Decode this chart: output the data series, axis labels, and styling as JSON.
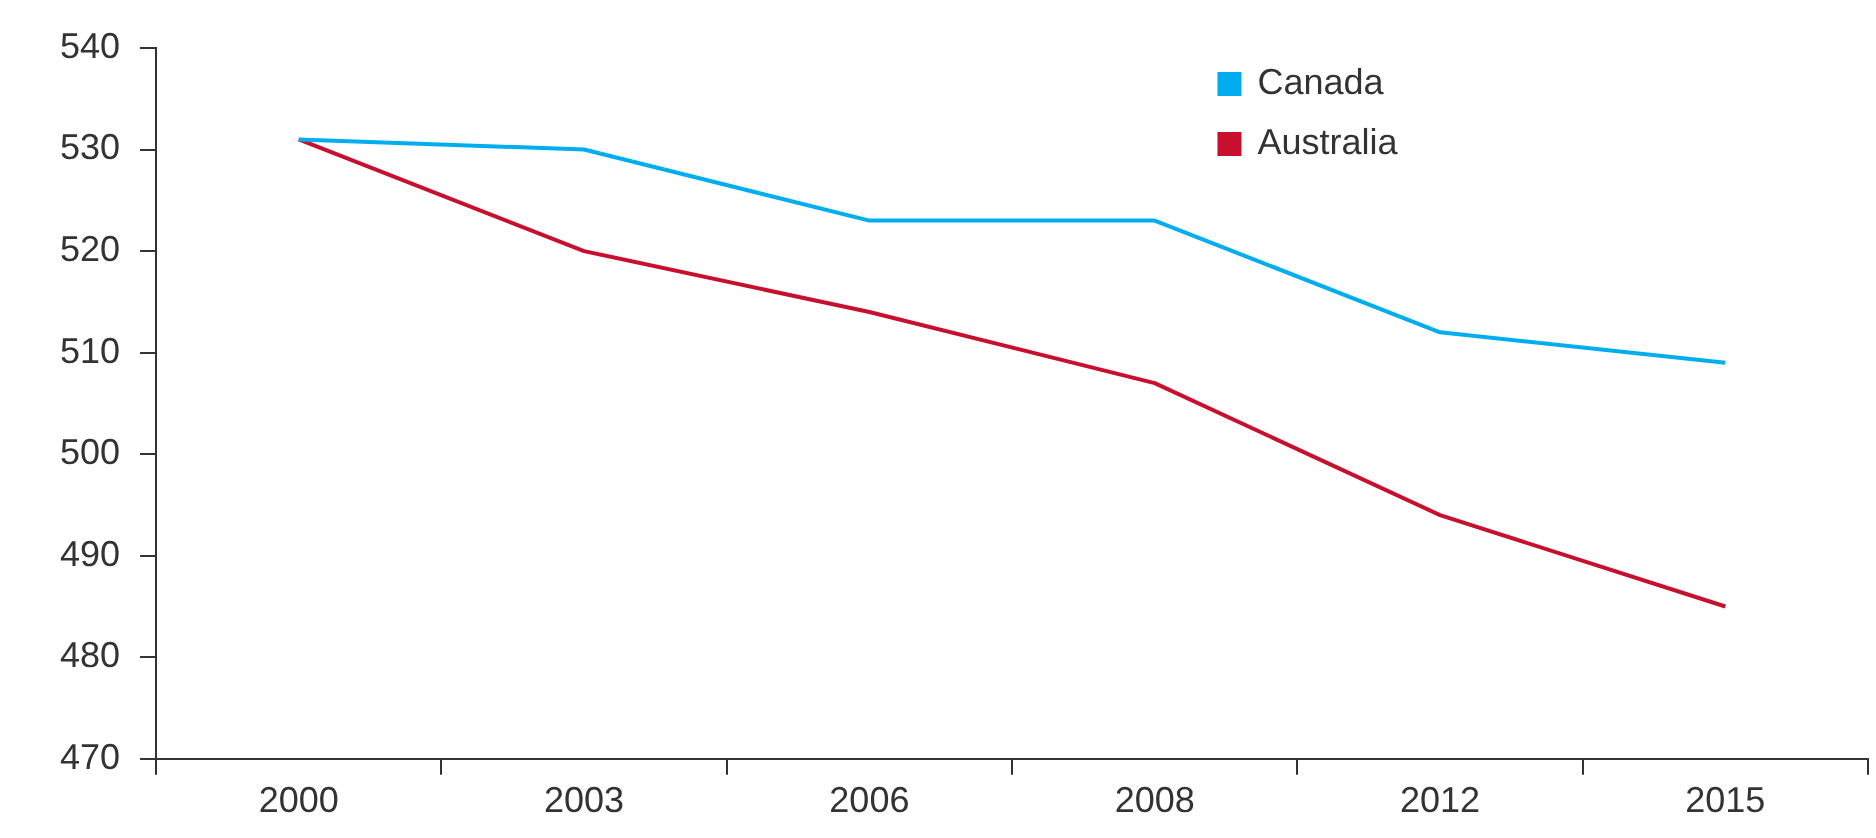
{
  "chart_data": {
    "type": "line",
    "categories": [
      "2000",
      "2003",
      "2006",
      "2008",
      "2012",
      "2015"
    ],
    "series": [
      {
        "name": "Canada",
        "color": "#00aeef",
        "values": [
          531,
          530,
          523,
          523,
          512,
          509
        ]
      },
      {
        "name": "Australia",
        "color": "#c8102e",
        "values": [
          531,
          520,
          514,
          507,
          494,
          485
        ]
      }
    ],
    "ylim": [
      470,
      540
    ],
    "yticks": [
      470,
      480,
      490,
      500,
      510,
      520,
      530,
      540
    ],
    "grid": false,
    "legend": "top right",
    "marker": "none",
    "line_style": "solid"
  }
}
